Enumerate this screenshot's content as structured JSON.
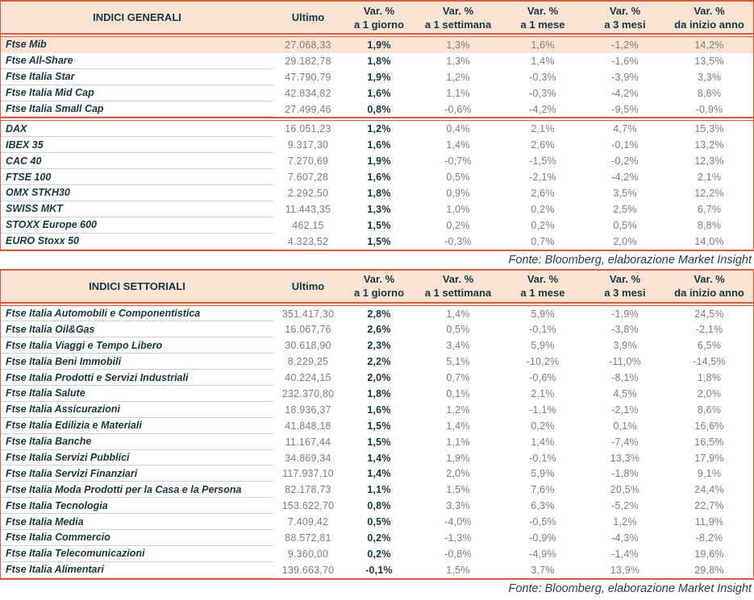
{
  "colors": {
    "accent_line": "#dc5a42",
    "header_bg": "#fbe3d3",
    "text_dark": "#173742",
    "text_gray": "#7e7e7e"
  },
  "header_columns": {
    "ultimo": "Ultimo",
    "var_columns": [
      {
        "top": "Var. %",
        "sub": "a 1 giorno"
      },
      {
        "top": "Var. %",
        "sub": "a 1 settimana"
      },
      {
        "top": "Var. %",
        "sub": "a 1 mese"
      },
      {
        "top": "Var. %",
        "sub": "a 3 mesi"
      },
      {
        "top": "Var. %",
        "sub": "da inizio anno"
      }
    ]
  },
  "source_note": "Fonte: Bloomberg, elaborazione Market Insight",
  "tables": [
    {
      "title": "INDICI GENERALI",
      "groups": [
        {
          "rows": [
            {
              "name": "Ftse Mib",
              "ultimo": "27.068,33",
              "d1": "1,9%",
              "w1": "1,3%",
              "m1": "1,6%",
              "m3": "-1,2%",
              "ytd": "14,2%",
              "highlight": true
            },
            {
              "name": "Ftse All-Share",
              "ultimo": "29.182,78",
              "d1": "1,8%",
              "w1": "1,3%",
              "m1": "1,4%",
              "m3": "-1,6%",
              "ytd": "13,5%"
            },
            {
              "name": "Ftse Italia Star",
              "ultimo": "47.790,79",
              "d1": "1,9%",
              "w1": "1,2%",
              "m1": "-0,3%",
              "m3": "-3,9%",
              "ytd": "3,3%"
            },
            {
              "name": "Ftse Italia Mid Cap",
              "ultimo": "42.834,82",
              "d1": "1,6%",
              "w1": "1,1%",
              "m1": "-0,3%",
              "m3": "-4,2%",
              "ytd": "8,8%"
            },
            {
              "name": "Ftse Italia Small Cap",
              "ultimo": "27.499,46",
              "d1": "0,8%",
              "w1": "-0,6%",
              "m1": "-4,2%",
              "m3": "-9,5%",
              "ytd": "-0,9%"
            }
          ]
        },
        {
          "rows": [
            {
              "name": "DAX",
              "ultimo": "16.051,23",
              "d1": "1,2%",
              "w1": "0,4%",
              "m1": "2,1%",
              "m3": "4,7%",
              "ytd": "15,3%"
            },
            {
              "name": "IBEX 35",
              "ultimo": "9.317,30",
              "d1": "1,6%",
              "w1": "1,4%",
              "m1": "2,6%",
              "m3": "-0,1%",
              "ytd": "13,2%"
            },
            {
              "name": "CAC 40",
              "ultimo": "7.270,69",
              "d1": "1,9%",
              "w1": "-0,7%",
              "m1": "-1,5%",
              "m3": "-0,2%",
              "ytd": "12,3%"
            },
            {
              "name": "FTSE 100",
              "ultimo": "7.607,28",
              "d1": "1,6%",
              "w1": "0,5%",
              "m1": "-2,1%",
              "m3": "-4,2%",
              "ytd": "2,1%"
            },
            {
              "name": "OMX STKH30",
              "ultimo": "2.292,50",
              "d1": "1,8%",
              "w1": "0,9%",
              "m1": "2,6%",
              "m3": "3,5%",
              "ytd": "12,2%"
            },
            {
              "name": "SWISS MKT",
              "ultimo": "11.443,35",
              "d1": "1,3%",
              "w1": "1,0%",
              "m1": "0,2%",
              "m3": "2,5%",
              "ytd": "6,7%"
            },
            {
              "name": "STOXX Europe 600",
              "ultimo": "462,15",
              "d1": "1,5%",
              "w1": "0,2%",
              "m1": "0,2%",
              "m3": "0,5%",
              "ytd": "8,8%"
            },
            {
              "name": "EURO Stoxx 50",
              "ultimo": "4.323,52",
              "d1": "1,5%",
              "w1": "-0,3%",
              "m1": "0,7%",
              "m3": "2,0%",
              "ytd": "14,0%"
            }
          ]
        }
      ]
    },
    {
      "title": "INDICI SETTORIALI",
      "groups": [
        {
          "rows": [
            {
              "name": "Ftse Italia Automobili e Componentistica",
              "ultimo": "351.417,30",
              "d1": "2,8%",
              "w1": "1,4%",
              "m1": "5,9%",
              "m3": "-1,9%",
              "ytd": "24,5%"
            },
            {
              "name": "Ftse Italia Oil&Gas",
              "ultimo": "16.067,76",
              "d1": "2,6%",
              "w1": "0,5%",
              "m1": "-0,1%",
              "m3": "-3,8%",
              "ytd": "-2,1%"
            },
            {
              "name": "Ftse Italia Viaggi e Tempo Libero",
              "ultimo": "30.618,90",
              "d1": "2,3%",
              "w1": "3,4%",
              "m1": "5,9%",
              "m3": "3,9%",
              "ytd": "6,5%"
            },
            {
              "name": "Ftse Italia Beni Immobili",
              "ultimo": "8.229,25",
              "d1": "2,2%",
              "w1": "5,1%",
              "m1": "-10,2%",
              "m3": "-11,0%",
              "ytd": "-14,5%"
            },
            {
              "name": "Ftse Italia Prodotti e Servizi Industriali",
              "ultimo": "40.224,15",
              "d1": "2,0%",
              "w1": "0,7%",
              "m1": "-0,6%",
              "m3": "-8,1%",
              "ytd": "1,8%"
            },
            {
              "name": "Ftse Italia Salute",
              "ultimo": "232.370,80",
              "d1": "1,8%",
              "w1": "0,1%",
              "m1": "2,1%",
              "m3": "4,5%",
              "ytd": "2,0%"
            },
            {
              "name": "Ftse Italia Assicurazioni",
              "ultimo": "18.936,37",
              "d1": "1,6%",
              "w1": "1,2%",
              "m1": "-1,1%",
              "m3": "-2,1%",
              "ytd": "8,6%"
            },
            {
              "name": "Ftse Italia Edilizia e Materiali",
              "ultimo": "41.848,18",
              "d1": "1,5%",
              "w1": "1,4%",
              "m1": "0,2%",
              "m3": "0,1%",
              "ytd": "16,6%"
            },
            {
              "name": "Ftse Italia Banche",
              "ultimo": "11.167,44",
              "d1": "1,5%",
              "w1": "1,1%",
              "m1": "1,4%",
              "m3": "-7,4%",
              "ytd": "16,5%"
            },
            {
              "name": "Ftse Italia Servizi Pubblici",
              "ultimo": "34.869,34",
              "d1": "1,4%",
              "w1": "1,9%",
              "m1": "-0,1%",
              "m3": "13,3%",
              "ytd": "17,9%"
            },
            {
              "name": "Ftse Italia Servizi Finanziari",
              "ultimo": "117.937,10",
              "d1": "1,4%",
              "w1": "2,0%",
              "m1": "5,9%",
              "m3": "-1,8%",
              "ytd": "9,1%"
            },
            {
              "name": "Ftse Italia Moda Prodotti per la Casa e la Persona",
              "ultimo": "82.178,73",
              "d1": "1,1%",
              "w1": "1,5%",
              "m1": "7,6%",
              "m3": "20,5%",
              "ytd": "24,4%"
            },
            {
              "name": "Ftse Italia Tecnologia",
              "ultimo": "153.622,70",
              "d1": "0,8%",
              "w1": "3,3%",
              "m1": "6,3%",
              "m3": "-5,2%",
              "ytd": "22,7%"
            },
            {
              "name": "Ftse Italia Media",
              "ultimo": "7.409,42",
              "d1": "0,5%",
              "w1": "-4,0%",
              "m1": "-0,5%",
              "m3": "1,2%",
              "ytd": "11,9%"
            },
            {
              "name": "Ftse Italia Commercio",
              "ultimo": "88.572,81",
              "d1": "0,2%",
              "w1": "-1,3%",
              "m1": "-0,9%",
              "m3": "-4,3%",
              "ytd": "-8,2%"
            },
            {
              "name": "Ftse Italia Telecomunicazioni",
              "ultimo": "9.360,00",
              "d1": "0,2%",
              "w1": "-0,8%",
              "m1": "-4,9%",
              "m3": "-1,4%",
              "ytd": "19,6%"
            },
            {
              "name": "Ftse Italia Alimentari",
              "ultimo": "139.663,70",
              "d1": "-0,1%",
              "w1": "1,5%",
              "m1": "3,7%",
              "m3": "13,9%",
              "ytd": "29,8%"
            }
          ]
        }
      ]
    }
  ]
}
